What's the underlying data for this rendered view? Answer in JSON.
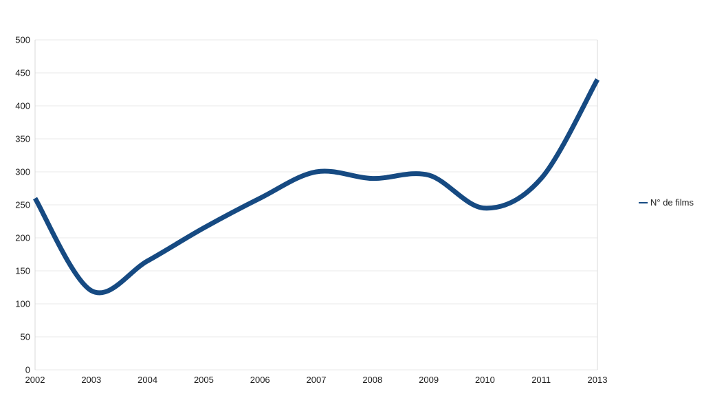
{
  "chart_data": {
    "type": "line",
    "title": "",
    "categories": [
      "2002",
      "2003",
      "2004",
      "2005",
      "2006",
      "2007",
      "2008",
      "2009",
      "2010",
      "2011",
      "2013"
    ],
    "series": [
      {
        "name": "N° de films",
        "values": [
          260,
          120,
          165,
          215,
          260,
          300,
          290,
          295,
          245,
          290,
          440
        ],
        "color": "#164A82",
        "line_width": 7,
        "smooth": true
      }
    ],
    "xlabel": "",
    "ylabel": "",
    "ylim": [
      0,
      500
    ],
    "ytick_step": 50,
    "ytick_labels": [
      "0",
      "50",
      "100",
      "150",
      "200",
      "250",
      "300",
      "350",
      "400",
      "450",
      "500"
    ],
    "grid": true,
    "legend_position": "right"
  },
  "legend": {
    "label": "N° de films",
    "marker_color": "#164A82"
  },
  "colors": {
    "background": "#ffffff",
    "gridline": "#e9e9e9",
    "axis_border": "#d9d9d9",
    "tick_text": "#1c1c1c",
    "series_line": "#164A82"
  }
}
